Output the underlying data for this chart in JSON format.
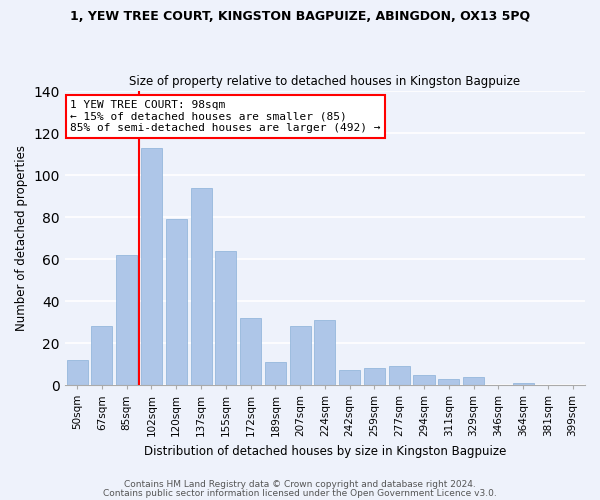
{
  "title": "1, YEW TREE COURT, KINGSTON BAGPUIZE, ABINGDON, OX13 5PQ",
  "subtitle": "Size of property relative to detached houses in Kingston Bagpuize",
  "xlabel": "Distribution of detached houses by size in Kingston Bagpuize",
  "ylabel": "Number of detached properties",
  "bar_labels": [
    "50sqm",
    "67sqm",
    "85sqm",
    "102sqm",
    "120sqm",
    "137sqm",
    "155sqm",
    "172sqm",
    "189sqm",
    "207sqm",
    "224sqm",
    "242sqm",
    "259sqm",
    "277sqm",
    "294sqm",
    "311sqm",
    "329sqm",
    "346sqm",
    "364sqm",
    "381sqm",
    "399sqm"
  ],
  "bar_values": [
    12,
    28,
    62,
    113,
    79,
    94,
    64,
    32,
    11,
    28,
    31,
    7,
    8,
    9,
    5,
    3,
    4,
    0,
    1,
    0,
    0
  ],
  "bar_color": "#aec6e8",
  "bar_edge_color": "#8ab0d8",
  "vline_x_idx": 3,
  "vline_color": "red",
  "annotation_title": "1 YEW TREE COURT: 98sqm",
  "annotation_line1": "← 15% of detached houses are smaller (85)",
  "annotation_line2": "85% of semi-detached houses are larger (492) →",
  "annotation_box_color": "white",
  "annotation_box_edge": "red",
  "ylim": [
    0,
    140
  ],
  "yticks": [
    0,
    20,
    40,
    60,
    80,
    100,
    120,
    140
  ],
  "footer1": "Contains HM Land Registry data © Crown copyright and database right 2024.",
  "footer2": "Contains public sector information licensed under the Open Government Licence v3.0.",
  "bg_color": "#eef2fb",
  "plot_bg_color": "#eef2fb"
}
